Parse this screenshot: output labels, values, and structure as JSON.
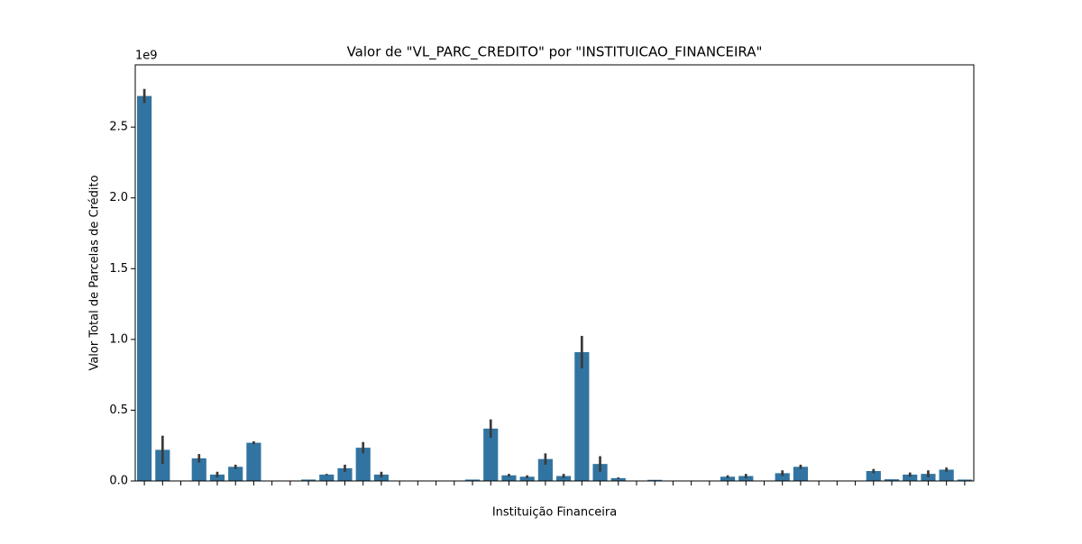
{
  "chart_data": {
    "type": "bar",
    "title": "Valor de \"VL_PARC_CREDITO\" por \"INSTITUICAO_FINANCEIRA\"",
    "x_label": "Instituição Financeira",
    "y_label": "Valor Total de Parcelas de Crédito",
    "y_offset_label": "1e9",
    "color": "#3274a1",
    "error_color": "#3a3a3a",
    "categories": [
      null,
      null,
      null,
      null,
      null,
      null,
      null,
      null,
      null,
      null,
      null,
      null,
      null,
      null,
      null,
      null,
      null,
      null,
      null,
      null,
      null,
      null,
      null,
      null,
      null,
      null,
      null,
      null,
      null,
      null,
      null,
      null,
      null,
      null,
      null,
      null,
      null,
      null,
      null,
      null,
      null,
      null,
      null,
      null,
      null,
      null
    ],
    "values": [
      2.72,
      0.22,
      0.002,
      0.16,
      0.045,
      0.1,
      0.27,
      0,
      0.003,
      0.01,
      0.045,
      0.09,
      0.235,
      0.045,
      0,
      0,
      0,
      0.003,
      0.01,
      0.37,
      0.04,
      0.03,
      0.155,
      0.035,
      0.91,
      0.12,
      0.02,
      0,
      0.008,
      0,
      0,
      0,
      0.03,
      0.035,
      0,
      0.055,
      0.1,
      0.003,
      0,
      0,
      0.07,
      0.012,
      0.045,
      0.05,
      0.08,
      0.01
    ],
    "errors": [
      0.05,
      0.1,
      0,
      0.03,
      0.02,
      0.015,
      0.01,
      0,
      0,
      0,
      0.005,
      0.025,
      0.04,
      0.02,
      0,
      0,
      0,
      0,
      0,
      0.065,
      0.01,
      0.01,
      0.04,
      0.015,
      0.115,
      0.055,
      0.005,
      0,
      0,
      0,
      0,
      0,
      0.01,
      0.015,
      0,
      0.02,
      0.015,
      0,
      0,
      0,
      0.015,
      0,
      0.015,
      0.025,
      0.015,
      0
    ],
    "ylim": [
      0,
      2.94
    ],
    "yticks": [
      {
        "value": 0,
        "label": "0.0"
      },
      0.5,
      {
        "value": 1,
        "label": "1.0"
      },
      1.5,
      {
        "value": 2,
        "label": "2.0"
      },
      2.5
    ]
  }
}
